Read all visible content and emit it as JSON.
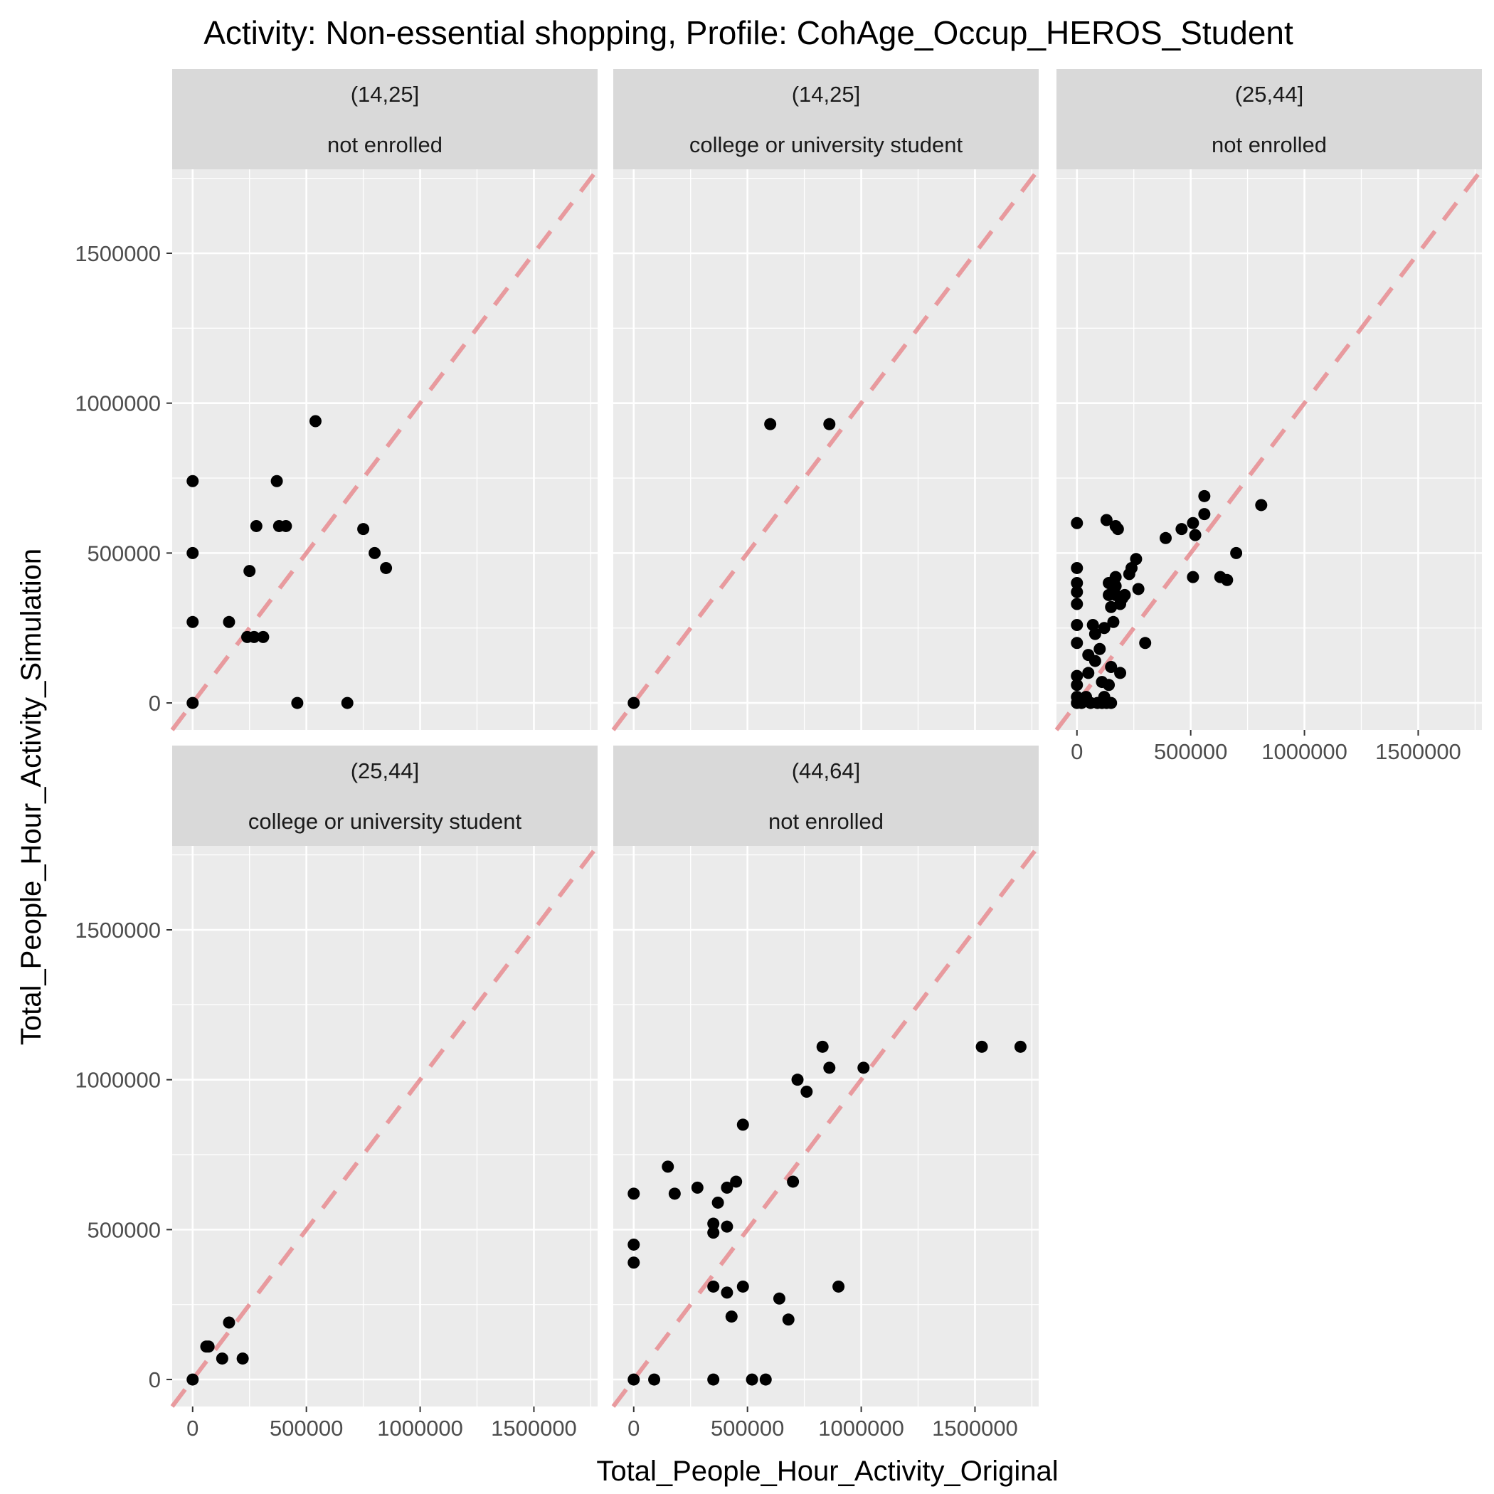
{
  "chart_data": {
    "type": "scatter",
    "title": "Activity: Non-essential shopping, Profile: CohAge_Occup_HEROS_Student",
    "xlabel": "Total_People_Hour_Activity_Original",
    "ylabel": "Total_People_Hour_Activity_Simulation",
    "xlim": [
      -90000,
      1780000
    ],
    "ylim": [
      -90000,
      1780000
    ],
    "x_ticks": [
      0,
      500000,
      1000000,
      1500000
    ],
    "y_ticks": [
      0,
      500000,
      1000000,
      1500000
    ],
    "x_tick_labels": [
      "0",
      "500000",
      "1000000",
      "1500000"
    ],
    "y_tick_labels": [
      "0",
      "500000",
      "1000000",
      "1500000"
    ],
    "reference_line": {
      "slope": 1,
      "intercept": 0,
      "style": "dashed",
      "color": "#e89a9e"
    },
    "colors": {
      "panel_bg": "#ebebeb",
      "strip_bg": "#d9d9d9",
      "grid": "#ffffff",
      "point": "#000000",
      "tick_text": "#4d4d4d"
    },
    "grid": true,
    "legend": "none",
    "panels": [
      {
        "strip": [
          "(14,25]",
          "not enrolled"
        ],
        "points": [
          [
            0,
            740000
          ],
          [
            0,
            500000
          ],
          [
            0,
            270000
          ],
          [
            0,
            0
          ],
          [
            160000,
            270000
          ],
          [
            240000,
            220000
          ],
          [
            270000,
            220000
          ],
          [
            310000,
            220000
          ],
          [
            250000,
            440000
          ],
          [
            280000,
            590000
          ],
          [
            370000,
            740000
          ],
          [
            380000,
            590000
          ],
          [
            410000,
            590000
          ],
          [
            540000,
            940000
          ],
          [
            460000,
            0
          ],
          [
            680000,
            0
          ],
          [
            750000,
            580000
          ],
          [
            800000,
            500000
          ],
          [
            850000,
            450000
          ]
        ]
      },
      {
        "strip": [
          "(14,25]",
          "college or university student"
        ],
        "points": [
          [
            600000,
            930000
          ],
          [
            860000,
            930000
          ],
          [
            0,
            0
          ]
        ]
      },
      {
        "strip": [
          "(25,44]",
          "not enrolled"
        ],
        "points": [
          [
            0,
            600000
          ],
          [
            0,
            450000
          ],
          [
            0,
            400000
          ],
          [
            0,
            370000
          ],
          [
            0,
            330000
          ],
          [
            0,
            260000
          ],
          [
            0,
            200000
          ],
          [
            0,
            90000
          ],
          [
            0,
            60000
          ],
          [
            0,
            20000
          ],
          [
            0,
            0
          ],
          [
            20000,
            0
          ],
          [
            40000,
            20000
          ],
          [
            50000,
            100000
          ],
          [
            50000,
            160000
          ],
          [
            60000,
            0
          ],
          [
            70000,
            260000
          ],
          [
            80000,
            140000
          ],
          [
            80000,
            230000
          ],
          [
            90000,
            0
          ],
          [
            100000,
            180000
          ],
          [
            110000,
            70000
          ],
          [
            110000,
            0
          ],
          [
            120000,
            20000
          ],
          [
            120000,
            250000
          ],
          [
            130000,
            0
          ],
          [
            130000,
            610000
          ],
          [
            140000,
            400000
          ],
          [
            140000,
            360000
          ],
          [
            140000,
            60000
          ],
          [
            150000,
            0
          ],
          [
            150000,
            320000
          ],
          [
            150000,
            120000
          ],
          [
            160000,
            270000
          ],
          [
            160000,
            380000
          ],
          [
            170000,
            420000
          ],
          [
            170000,
            390000
          ],
          [
            170000,
            360000
          ],
          [
            170000,
            590000
          ],
          [
            180000,
            580000
          ],
          [
            190000,
            100000
          ],
          [
            190000,
            330000
          ],
          [
            200000,
            350000
          ],
          [
            210000,
            360000
          ],
          [
            230000,
            430000
          ],
          [
            240000,
            450000
          ],
          [
            260000,
            480000
          ],
          [
            270000,
            380000
          ],
          [
            300000,
            200000
          ],
          [
            390000,
            550000
          ],
          [
            460000,
            580000
          ],
          [
            510000,
            600000
          ],
          [
            520000,
            560000
          ],
          [
            510000,
            420000
          ],
          [
            560000,
            630000
          ],
          [
            560000,
            690000
          ],
          [
            630000,
            420000
          ],
          [
            660000,
            410000
          ],
          [
            700000,
            500000
          ],
          [
            810000,
            660000
          ]
        ]
      },
      {
        "strip": [
          "(25,44]",
          "college or university student"
        ],
        "points": [
          [
            0,
            0
          ],
          [
            60000,
            110000
          ],
          [
            70000,
            110000
          ],
          [
            130000,
            70000
          ],
          [
            160000,
            190000
          ],
          [
            220000,
            70000
          ]
        ]
      },
      {
        "strip": [
          "(44,64]",
          "not enrolled"
        ],
        "points": [
          [
            0,
            620000
          ],
          [
            0,
            450000
          ],
          [
            0,
            390000
          ],
          [
            0,
            0
          ],
          [
            90000,
            0
          ],
          [
            150000,
            710000
          ],
          [
            180000,
            620000
          ],
          [
            280000,
            640000
          ],
          [
            350000,
            520000
          ],
          [
            350000,
            490000
          ],
          [
            350000,
            310000
          ],
          [
            350000,
            0
          ],
          [
            370000,
            590000
          ],
          [
            410000,
            640000
          ],
          [
            410000,
            510000
          ],
          [
            410000,
            290000
          ],
          [
            430000,
            210000
          ],
          [
            450000,
            660000
          ],
          [
            480000,
            850000
          ],
          [
            480000,
            310000
          ],
          [
            520000,
            0
          ],
          [
            580000,
            0
          ],
          [
            640000,
            270000
          ],
          [
            680000,
            200000
          ],
          [
            700000,
            660000
          ],
          [
            720000,
            1000000
          ],
          [
            760000,
            960000
          ],
          [
            830000,
            1110000
          ],
          [
            860000,
            1040000
          ],
          [
            900000,
            310000
          ],
          [
            1010000,
            1040000
          ],
          [
            1530000,
            1110000
          ],
          [
            1700000,
            1110000
          ]
        ]
      }
    ]
  }
}
